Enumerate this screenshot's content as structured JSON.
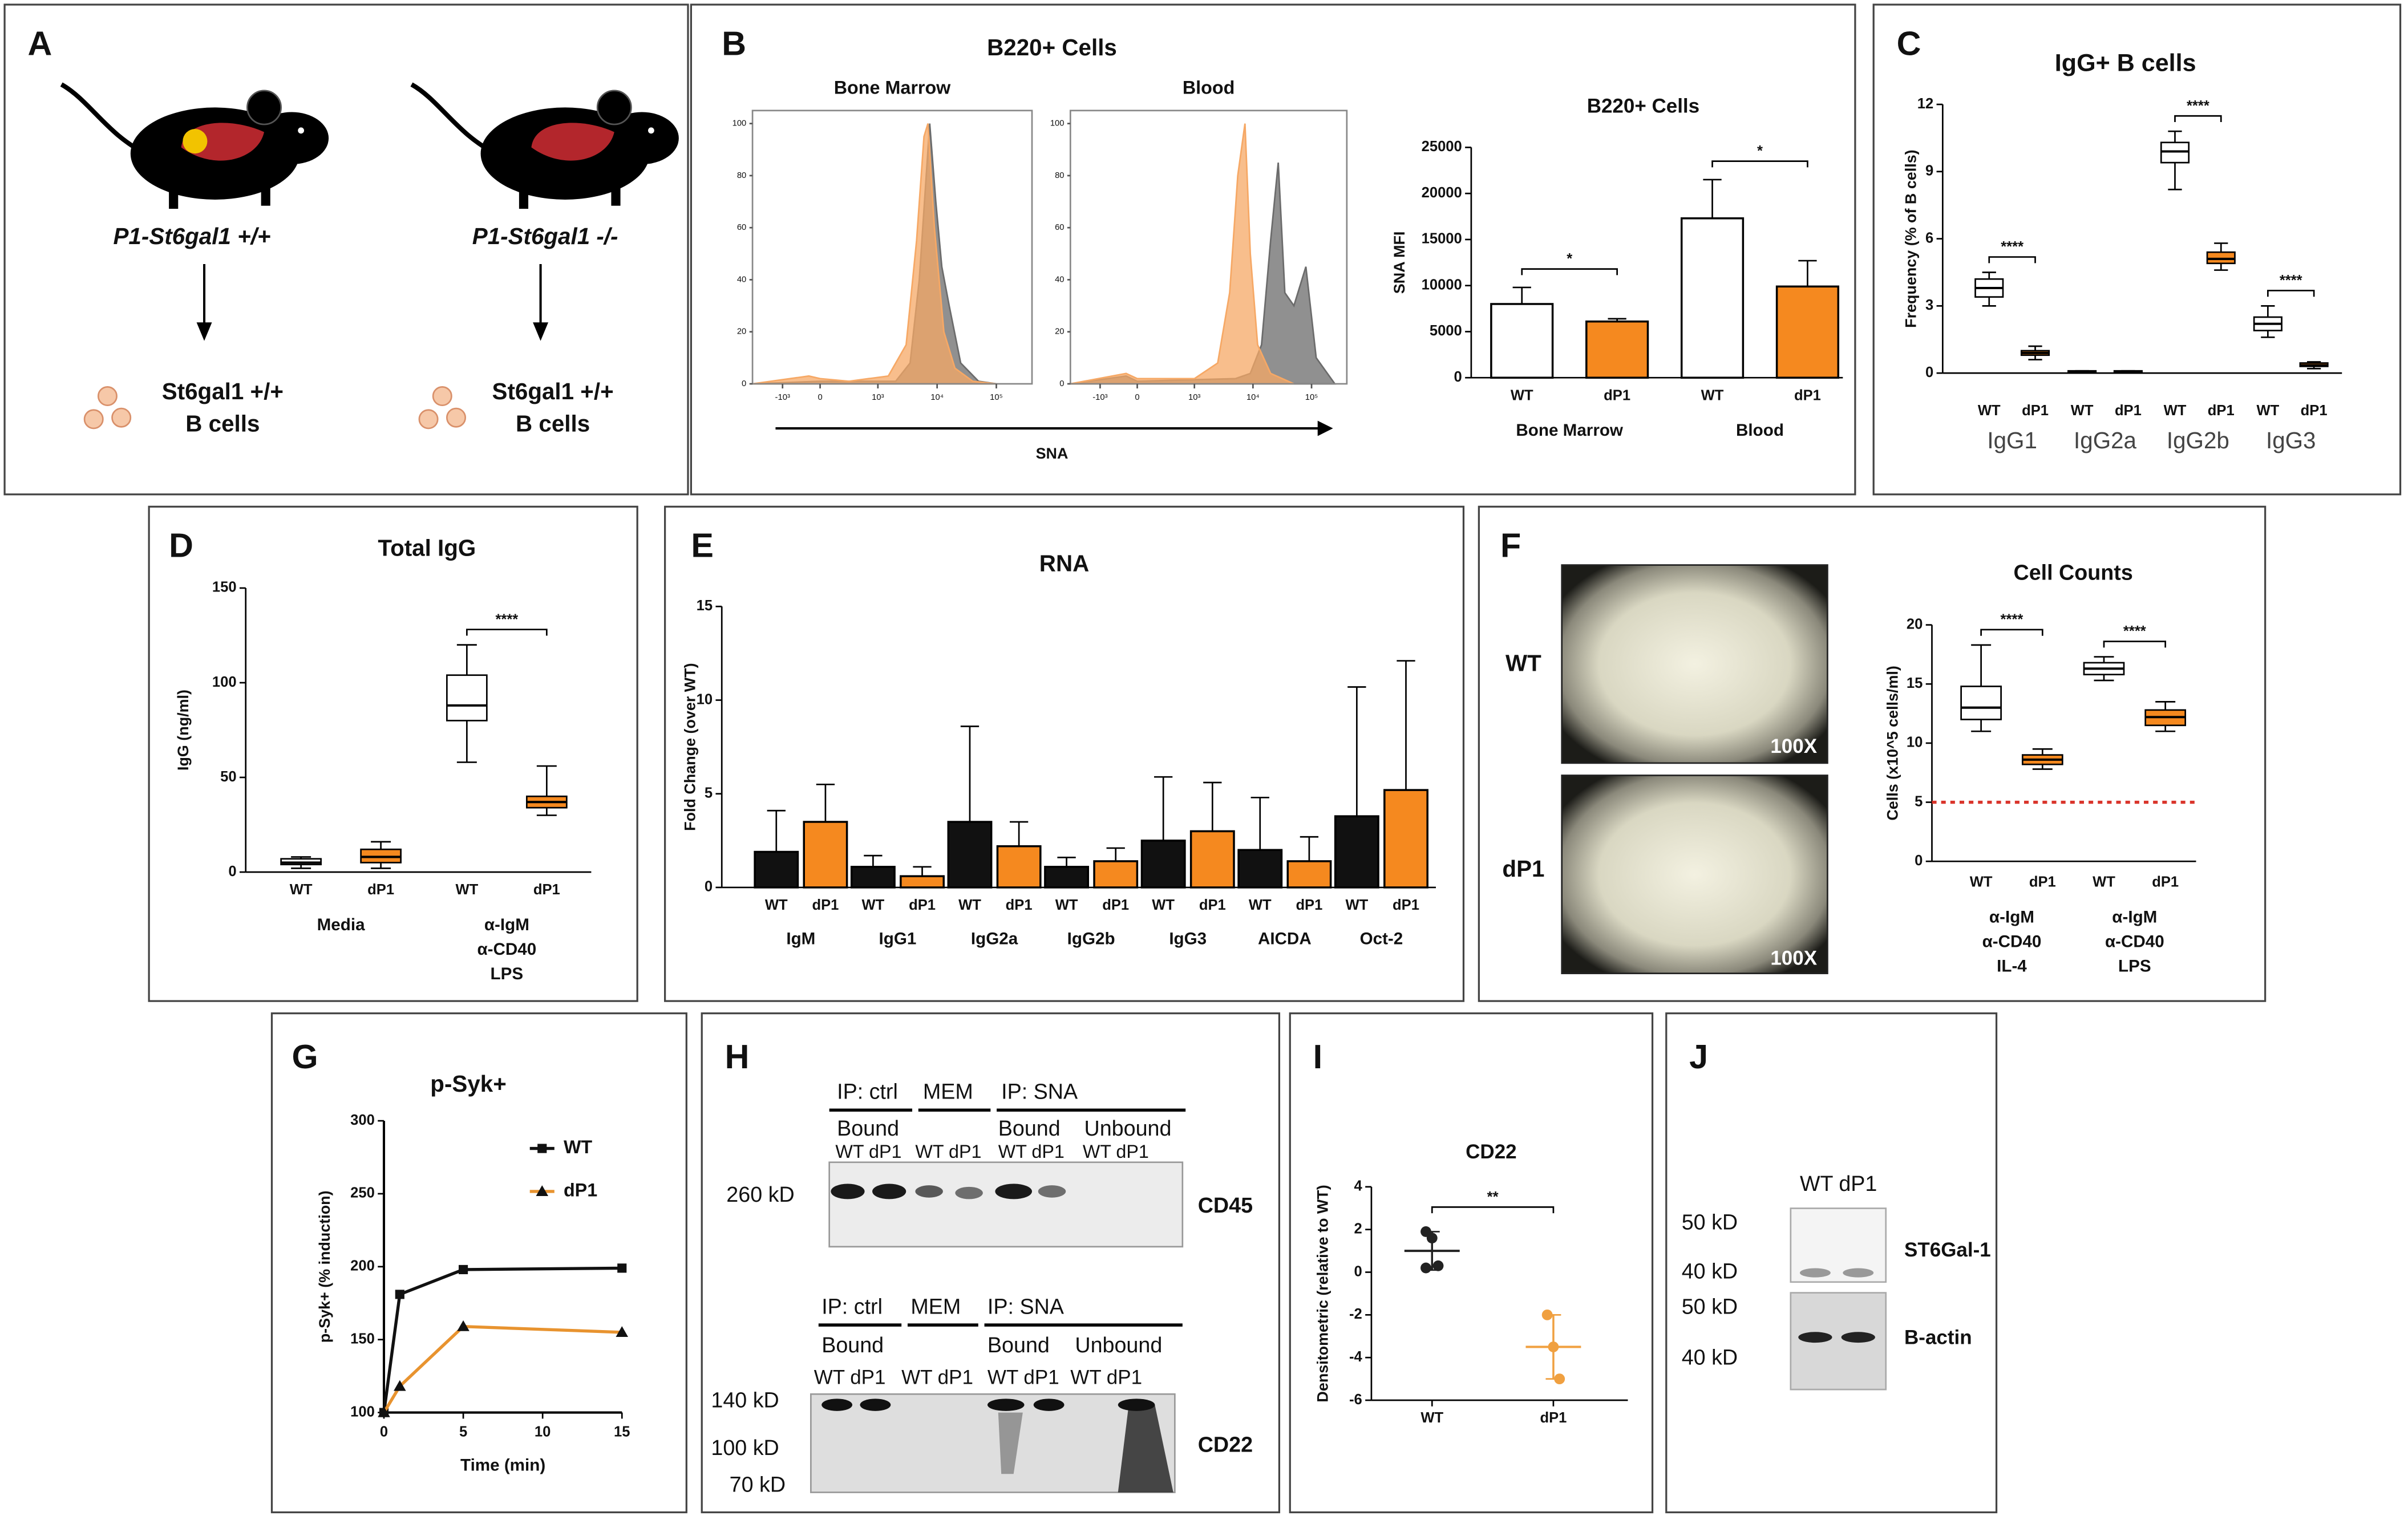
{
  "panel_labels": [
    "A",
    "B",
    "C",
    "D",
    "E",
    "F",
    "G",
    "H",
    "I",
    "J"
  ],
  "panel_a": {
    "mice": [
      {
        "genotype": "P1-St6gal1 +/+",
        "cells": [
          "St6gal1 +/+",
          "B cells"
        ]
      },
      {
        "genotype": "P1-St6gal1 -/-",
        "cells": [
          "St6gal1 +/+",
          "B cells"
        ]
      }
    ]
  },
  "panel_b": {
    "title": "B220+ Cells",
    "x_label": "SNA"
  },
  "panel_f": {
    "images": [
      {
        "label": "WT",
        "magnification": "100X"
      },
      {
        "label": "dP1",
        "magnification": "100X"
      }
    ]
  },
  "panel_h": {
    "blots": [
      {
        "ip_groups": [
          "IP: ctrl",
          "MEM",
          "IP: SNA"
        ],
        "fractions": [
          "Bound",
          "Bound",
          "Unbound"
        ],
        "lanes": [
          "WT dP1",
          "WT dP1",
          "WT dP1",
          "WT dP1"
        ],
        "markers": [
          "260 kD"
        ],
        "target": "CD45"
      },
      {
        "ip_groups": [
          "IP: ctrl",
          "MEM",
          "IP: SNA"
        ],
        "fractions": [
          "Bound",
          "Bound",
          "Unbound"
        ],
        "lanes": [
          "WT dP1",
          "WT dP1",
          "WT dP1",
          "WT dP1"
        ],
        "markers": [
          "140 kD",
          "100 kD",
          "70 kD"
        ],
        "target": "CD22"
      }
    ]
  },
  "panel_j": {
    "lanes": "WT dP1",
    "blots": [
      {
        "markers": [
          "50 kD",
          "40 kD"
        ],
        "target": "ST6Gal-1"
      },
      {
        "markers": [
          "50 kD",
          "40 kD"
        ],
        "target": "B-actin"
      }
    ]
  },
  "chart_data": [
    {
      "type": "density",
      "title": "Bone Marrow",
      "xscale": "biexponential",
      "xlim": [
        -1800,
        400000
      ],
      "xticks": [
        {
          "value": -1000,
          "label": "-10³"
        },
        0,
        {
          "value": 1000,
          "label": "10³"
        },
        {
          "value": 10000,
          "label": "10⁴"
        },
        {
          "value": 100000,
          "label": "10⁵"
        }
      ],
      "ylim": [
        0,
        105
      ],
      "yticks": [
        0,
        20,
        40,
        60,
        80,
        100
      ],
      "series": [
        {
          "color": "#6b6b6b",
          "x": [
            -1800,
            0,
            2000,
            3500,
            5000,
            7500,
            9500,
            12000,
            16000,
            25000,
            50000,
            100000
          ],
          "values": [
            0,
            1,
            1,
            8,
            40,
            100,
            70,
            45,
            30,
            8,
            1,
            0
          ]
        },
        {
          "color": "#f6a865",
          "x": [
            -1800,
            -300,
            0,
            500,
            1500,
            3000,
            4500,
            6000,
            7000,
            9000,
            13000,
            20000,
            40000,
            100000
          ],
          "values": [
            0,
            3,
            2,
            1,
            3,
            15,
            55,
            95,
            100,
            60,
            20,
            6,
            1,
            0
          ]
        }
      ]
    },
    {
      "type": "density",
      "title": "Blood",
      "xscale": "biexponential",
      "xlim": [
        -1800,
        400000
      ],
      "xticks": [
        {
          "value": -1000,
          "label": "-10³"
        },
        0,
        {
          "value": 1000,
          "label": "10³"
        },
        {
          "value": 10000,
          "label": "10⁴"
        },
        {
          "value": 100000,
          "label": "10⁵"
        }
      ],
      "ylim": [
        0,
        105
      ],
      "yticks": [
        0,
        20,
        40,
        60,
        80,
        100
      ],
      "series": [
        {
          "color": "#6b6b6b",
          "x": [
            -1800,
            -300,
            0,
            5000,
            9000,
            14000,
            20000,
            27000,
            35000,
            50000,
            80000,
            120000,
            250000
          ],
          "values": [
            0,
            3,
            1,
            2,
            4,
            15,
            55,
            85,
            35,
            30,
            45,
            10,
            0
          ]
        },
        {
          "color": "#f6a865",
          "x": [
            -1800,
            -300,
            0,
            1000,
            2500,
            4000,
            5500,
            7300,
            9000,
            12000,
            20000,
            50000
          ],
          "values": [
            0,
            4,
            2,
            2,
            8,
            35,
            80,
            100,
            50,
            15,
            4,
            0
          ]
        }
      ]
    },
    {
      "type": "bar",
      "title": "B220+ Cells",
      "ylabel": "SNA MFI",
      "categories": [
        "Bone Marrow",
        "Blood"
      ],
      "series": [
        {
          "name": "WT",
          "color": "#ffffff",
          "values": [
            8000,
            17300
          ],
          "errors": [
            1800,
            4200
          ]
        },
        {
          "name": "dP1",
          "color": "#f5891f",
          "values": [
            6100,
            9900
          ],
          "errors": [
            300,
            2800
          ]
        }
      ],
      "significance": [
        "*",
        "*"
      ],
      "ylim": [
        0,
        25000
      ],
      "yticks": [
        0,
        5000,
        10000,
        15000,
        20000,
        25000
      ]
    },
    {
      "type": "box",
      "title": "IgG+ B cells",
      "ylabel": "Frequency (% of B cells)",
      "categories": [
        "IgG1",
        "IgG2a",
        "IgG2b",
        "IgG3"
      ],
      "series": [
        {
          "name": "WT",
          "color": "#ffffff",
          "boxes": [
            {
              "min": 3.0,
              "q1": 3.4,
              "median": 3.8,
              "q3": 4.2,
              "max": 4.5
            },
            {
              "min": 0,
              "q1": 0,
              "median": 0.05,
              "q3": 0.1,
              "max": 0.1
            },
            {
              "min": 8.2,
              "q1": 9.4,
              "median": 9.9,
              "q3": 10.3,
              "max": 10.8
            },
            {
              "min": 1.6,
              "q1": 1.9,
              "median": 2.2,
              "q3": 2.5,
              "max": 3.0
            }
          ]
        },
        {
          "name": "dP1",
          "color": "#f5891f",
          "boxes": [
            {
              "min": 0.6,
              "q1": 0.8,
              "median": 0.9,
              "q3": 1.0,
              "max": 1.2
            },
            {
              "min": 0,
              "q1": 0,
              "median": 0.05,
              "q3": 0.1,
              "max": 0.1
            },
            {
              "min": 4.6,
              "q1": 4.9,
              "median": 5.1,
              "q3": 5.4,
              "max": 5.8
            },
            {
              "min": 0.2,
              "q1": 0.3,
              "median": 0.35,
              "q3": 0.45,
              "max": 0.5
            }
          ]
        }
      ],
      "significance": [
        "****",
        null,
        "****",
        "****"
      ],
      "ylim": [
        0,
        12
      ],
      "yticks": [
        0,
        3,
        6,
        9,
        12
      ]
    },
    {
      "type": "box",
      "title": "Total IgG",
      "ylabel": "IgG (ng/ml)",
      "categories": [
        [
          "Media"
        ],
        [
          "α-IgM",
          "α-CD40",
          "LPS"
        ]
      ],
      "series": [
        {
          "name": "WT",
          "color": "#ffffff",
          "boxes": [
            {
              "min": 2,
              "q1": 4,
              "median": 5,
              "q3": 7,
              "max": 8
            },
            {
              "min": 58,
              "q1": 80,
              "median": 88,
              "q3": 104,
              "max": 120
            }
          ]
        },
        {
          "name": "dP1",
          "color": "#f5891f",
          "boxes": [
            {
              "min": 2,
              "q1": 5,
              "median": 8,
              "q3": 12,
              "max": 16
            },
            {
              "min": 30,
              "q1": 34,
              "median": 37,
              "q3": 40,
              "max": 56
            }
          ]
        }
      ],
      "significance": [
        null,
        "****"
      ],
      "ylim": [
        0,
        150
      ],
      "yticks": [
        0,
        50,
        100,
        150
      ]
    },
    {
      "type": "bar",
      "title": "RNA",
      "ylabel": "Fold Change (over WT)",
      "categories": [
        "IgM",
        "IgG1",
        "IgG2a",
        "IgG2b",
        "IgG3",
        "AICDA",
        "Oct-2"
      ],
      "series": [
        {
          "name": "WT",
          "color": "#111111",
          "values": [
            1.9,
            1.1,
            3.5,
            1.1,
            2.5,
            2.0,
            3.8
          ],
          "errors": [
            2.2,
            0.6,
            5.1,
            0.5,
            3.4,
            2.8,
            6.9
          ]
        },
        {
          "name": "dP1",
          "color": "#f5891f",
          "values": [
            3.5,
            0.6,
            2.2,
            1.4,
            3.0,
            1.4,
            5.2
          ],
          "errors": [
            2.0,
            0.5,
            1.3,
            0.7,
            2.6,
            1.3,
            6.9
          ]
        }
      ],
      "ylim": [
        0,
        15
      ],
      "yticks": [
        0,
        5,
        10,
        15
      ]
    },
    {
      "type": "box",
      "title": "Cell Counts",
      "ylabel": "Cells (x10^5 cells/ml)",
      "categories": [
        [
          "α-IgM",
          "α-CD40",
          "IL-4"
        ],
        [
          "α-IgM",
          "α-CD40",
          "LPS"
        ]
      ],
      "series": [
        {
          "name": "WT",
          "color": "#ffffff",
          "boxes": [
            {
              "min": 11,
              "q1": 12,
              "median": 13,
              "q3": 14.8,
              "max": 18.3
            },
            {
              "min": 15.3,
              "q1": 15.8,
              "median": 16.3,
              "q3": 16.8,
              "max": 17.3
            }
          ]
        },
        {
          "name": "dP1",
          "color": "#f5891f",
          "boxes": [
            {
              "min": 7.8,
              "q1": 8.2,
              "median": 8.6,
              "q3": 9.0,
              "max": 9.5
            },
            {
              "min": 11,
              "q1": 11.5,
              "median": 12.2,
              "q3": 12.8,
              "max": 13.5
            }
          ]
        }
      ],
      "significance": [
        "****",
        "****"
      ],
      "reference_line": {
        "value": 5,
        "color": "#d9342b"
      },
      "ylim": [
        0,
        20
      ],
      "yticks": [
        0,
        5,
        10,
        15,
        20
      ]
    },
    {
      "type": "line",
      "title": "p-Syk+",
      "xlabel": "Time (min)",
      "ylabel": "p-Syk+ (% induction)",
      "legend": "upper right",
      "series": [
        {
          "name": "WT",
          "color": "#111111",
          "marker": "square",
          "x": [
            0,
            1,
            5,
            15
          ],
          "values": [
            100,
            181,
            198,
            199
          ]
        },
        {
          "name": "dP1",
          "color": "#e8932f",
          "marker": "triangle",
          "x": [
            0,
            1,
            5,
            15
          ],
          "values": [
            100,
            118,
            159,
            155
          ]
        }
      ],
      "xlim": [
        0,
        15
      ],
      "xticks": [
        0,
        5,
        10,
        15
      ],
      "ylim": [
        100,
        300
      ],
      "yticks": [
        100,
        150,
        200,
        250,
        300
      ]
    },
    {
      "type": "scatter",
      "title": "CD22",
      "ylabel": "Densitometric (relative to WT)",
      "series": [
        {
          "name": "WT",
          "color": "#222222",
          "points": [
            1.9,
            1.6,
            0.3,
            0.2
          ],
          "mean": 1.0,
          "sd": 0.9
        },
        {
          "name": "dP1",
          "color": "#f0a040",
          "points": [
            -2.0,
            -3.5,
            -5.0
          ],
          "mean": -3.5,
          "sd": 1.5
        }
      ],
      "significance": "**",
      "ylim": [
        -6,
        4
      ],
      "yticks": [
        4,
        2,
        0,
        -2,
        -4,
        -6
      ]
    }
  ]
}
